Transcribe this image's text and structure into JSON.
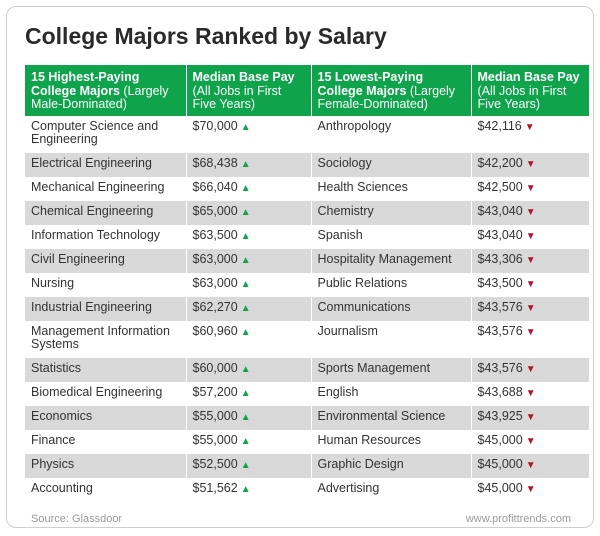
{
  "title": "College Majors Ranked by Salary",
  "headers": {
    "high_major_bold": "15 Highest-Paying College Majors",
    "high_major_rest": " (Largely Male-Dominated)",
    "high_pay_bold": "Median Base Pay",
    "high_pay_rest": " (All Jobs in First Five Years)",
    "low_major_bold": "15 Lowest-Paying College Majors",
    "low_major_rest": " (Largely Female-Dominated)",
    "low_pay_bold": "Median Base Pay",
    "low_pay_rest": " (All Jobs in First Five Years)"
  },
  "chart_data": {
    "type": "table",
    "title": "College Majors Ranked by Salary",
    "columns": [
      "15 Highest-Paying College Majors (Largely Male-Dominated)",
      "Median Base Pay (All Jobs in First Five Years)",
      "15 Lowest-Paying College Majors (Largely Female-Dominated)",
      "Median Base Pay (All Jobs in First Five Years)"
    ],
    "rows": [
      {
        "high_major": "Computer Science and Engineering",
        "high_pay": "$70,000",
        "low_major": "Anthropology",
        "low_pay": "$42,116"
      },
      {
        "high_major": "Electrical Engineering",
        "high_pay": "$68,438",
        "low_major": "Sociology",
        "low_pay": "$42,200"
      },
      {
        "high_major": "Mechanical Engineering",
        "high_pay": "$66,040",
        "low_major": "Health Sciences",
        "low_pay": "$42,500"
      },
      {
        "high_major": "Chemical Engineering",
        "high_pay": "$65,000",
        "low_major": "Chemistry",
        "low_pay": "$43,040"
      },
      {
        "high_major": "Information Technology",
        "high_pay": "$63,500",
        "low_major": "Spanish",
        "low_pay": "$43,040"
      },
      {
        "high_major": "Civil Engineering",
        "high_pay": "$63,000",
        "low_major": "Hospitality Management",
        "low_pay": "$43,306"
      },
      {
        "high_major": "Nursing",
        "high_pay": "$63,000",
        "low_major": "Public Relations",
        "low_pay": "$43,500"
      },
      {
        "high_major": "Industrial Engineering",
        "high_pay": "$62,270",
        "low_major": "Communications",
        "low_pay": "$43,576"
      },
      {
        "high_major": "Management Information Systems",
        "high_pay": "$60,960",
        "low_major": "Journalism",
        "low_pay": "$43,576"
      },
      {
        "high_major": "Statistics",
        "high_pay": "$60,000",
        "low_major": "Sports Management",
        "low_pay": "$43,576"
      },
      {
        "high_major": "Biomedical Engineering",
        "high_pay": "$57,200",
        "low_major": "English",
        "low_pay": "$43,688"
      },
      {
        "high_major": "Economics",
        "high_pay": "$55,000",
        "low_major": "Environmental Science",
        "low_pay": "$43,925"
      },
      {
        "high_major": "Finance",
        "high_pay": "$55,000",
        "low_major": "Human Resources",
        "low_pay": "$45,000"
      },
      {
        "high_major": "Physics",
        "high_pay": "$52,500",
        "low_major": "Graphic Design",
        "low_pay": "$45,000"
      },
      {
        "high_major": "Accounting",
        "high_pay": "$51,562",
        "low_major": "Advertising",
        "low_pay": "$45,000"
      }
    ]
  },
  "icons": {
    "high_pay_indicator": "triangle-up-icon",
    "low_pay_indicator": "triangle-down-icon"
  },
  "colors": {
    "header_green": "#0fa34c",
    "up_arrow": "#0fa34c",
    "down_arrow": "#b5122a",
    "row_shade": "#d9d9d9"
  },
  "footer": {
    "source": "Source: Glassdoor",
    "site": "www.profittrends.com"
  }
}
